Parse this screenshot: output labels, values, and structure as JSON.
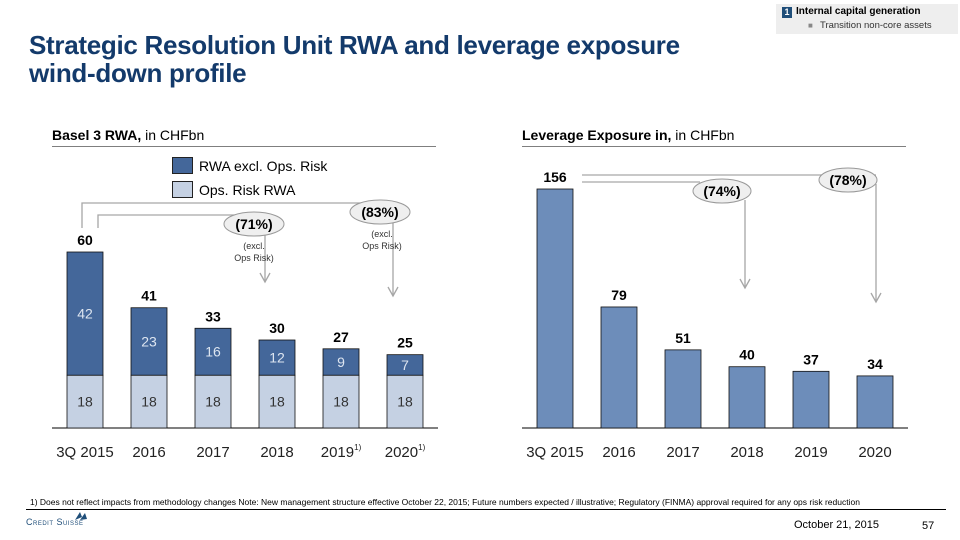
{
  "badge": {
    "number": "1",
    "title": "Internal capital generation",
    "bullet": "Transition non-core assets"
  },
  "title_line1": "Strategic Resolution Unit RWA and leverage exposure",
  "title_line2": "wind-down profile",
  "left_panel": {
    "heading_bold": "Basel 3 RWA,",
    "heading_rest": " in CHFbn",
    "legend": [
      {
        "label": "RWA excl. Ops. Risk",
        "color": "#44679a"
      },
      {
        "label": "Ops. Risk RWA",
        "color": "#c5d1e3"
      }
    ]
  },
  "right_panel": {
    "heading_bold": "Leverage Exposure in,",
    "heading_rest": " in CHFbn"
  },
  "chart_data": [
    {
      "type": "bar",
      "stacked": true,
      "title": "Basel 3 RWA, in CHFbn",
      "categories": [
        "3Q 2015",
        "2016",
        "2017",
        "2018",
        "2019",
        "2020"
      ],
      "category_superscripts": [
        "",
        "",
        "",
        "",
        "1)",
        "1)"
      ],
      "series": [
        {
          "name": "Ops. Risk RWA",
          "color": "#c5d1e3",
          "values": [
            18,
            18,
            18,
            18,
            18,
            18
          ]
        },
        {
          "name": "RWA excl. Ops. Risk",
          "color": "#44679a",
          "values": [
            42,
            23,
            16,
            12,
            9,
            7
          ]
        }
      ],
      "totals": [
        60,
        41,
        33,
        30,
        27,
        25
      ],
      "ylim": [
        0,
        60
      ],
      "grid": false,
      "legend": "top-center",
      "annotations": [
        {
          "label": "(71%)",
          "sublabel": "(excl. Ops Risk)",
          "from": "3Q 2015",
          "to": "2018"
        },
        {
          "label": "(83%)",
          "sublabel": "(excl. Ops Risk)",
          "from": "3Q 2015",
          "to": "2020"
        }
      ]
    },
    {
      "type": "bar",
      "title": "Leverage Exposure in, in CHFbn",
      "categories": [
        "3Q 2015",
        "2016",
        "2017",
        "2018",
        "2019",
        "2020"
      ],
      "series": [
        {
          "name": "Leverage Exposure",
          "color": "#6d8dba",
          "values": [
            156,
            79,
            51,
            40,
            37,
            34
          ]
        }
      ],
      "ylim": [
        0,
        156
      ],
      "grid": false,
      "annotations": [
        {
          "label": "(74%)",
          "from": "3Q 2015",
          "to": "2018"
        },
        {
          "label": "(78%)",
          "from": "3Q 2015",
          "to": "2020"
        }
      ]
    }
  ],
  "footer": {
    "footnote": "1) Does not reflect impacts from methodology changes  Note: New management structure effective October 22, 2015; Future numbers expected / illustrative; Regulatory (FINMA) approval required for any ops risk reduction",
    "logo": "Credit Suisse",
    "date": "October 21, 2015",
    "page": "57"
  }
}
